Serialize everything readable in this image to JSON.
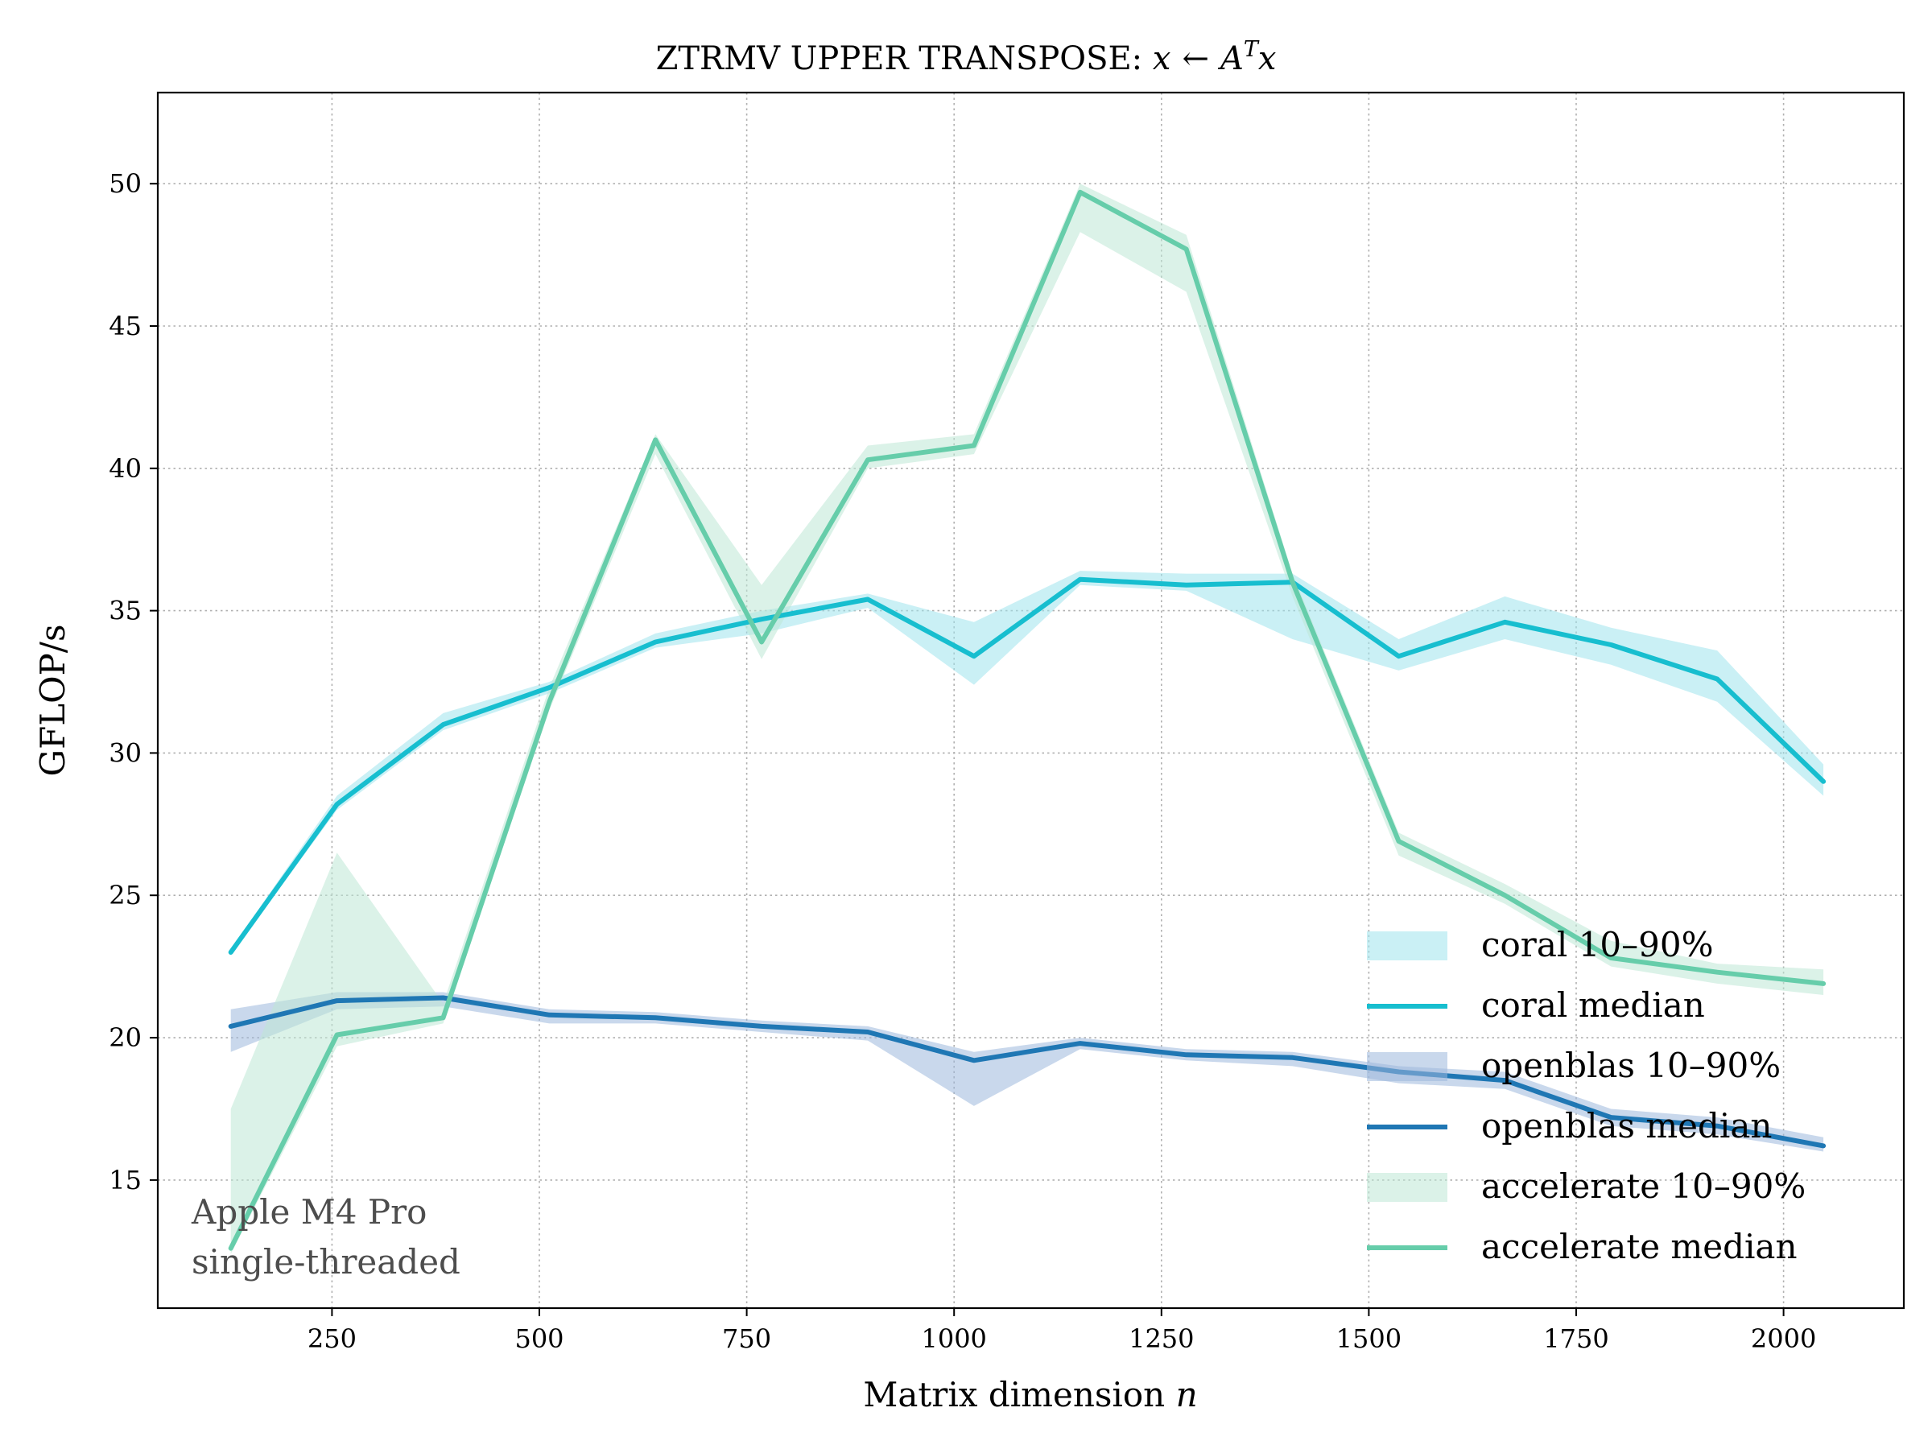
{
  "chart_data": {
    "type": "line",
    "title": "ZTRMV UPPER TRANSPOSE: ",
    "title_math": {
      "x": "x",
      "arrow": "←",
      "A": "A",
      "T": "T",
      "x2": "x"
    },
    "xlabel": "Matrix dimension ",
    "xlabel_var": "n",
    "ylabel": "GFLOP/s",
    "xlim": [
      40,
      2145
    ],
    "ylim": [
      10.5,
      53.2
    ],
    "xticks": [
      250,
      500,
      750,
      1000,
      1250,
      1500,
      1750,
      2000
    ],
    "yticks": [
      15,
      20,
      25,
      30,
      35,
      40,
      45,
      50
    ],
    "grid": true,
    "legend_position": "lower-right",
    "annotation": [
      "Apple M4 Pro",
      "single-threaded"
    ],
    "x": [
      128,
      256,
      384,
      512,
      640,
      768,
      896,
      1024,
      1152,
      1280,
      1408,
      1536,
      1664,
      1792,
      1920,
      2048
    ],
    "series": [
      {
        "name": "coral",
        "color": "#17becf",
        "band_color": "#9fe3ec",
        "median_label": "coral median",
        "band_label": "coral 10–90%",
        "median": [
          23.0,
          28.2,
          31.0,
          32.3,
          33.9,
          34.7,
          35.4,
          33.4,
          36.1,
          35.9,
          36.0,
          33.4,
          34.6,
          33.8,
          32.6,
          29.0
        ],
        "p10": [
          22.9,
          28.0,
          30.8,
          32.1,
          33.7,
          34.2,
          35.1,
          32.4,
          35.9,
          35.7,
          34.0,
          32.9,
          34.0,
          33.1,
          31.8,
          28.5
        ],
        "p90": [
          23.1,
          28.5,
          31.4,
          32.5,
          34.2,
          35.0,
          35.6,
          34.6,
          36.4,
          36.3,
          36.3,
          34.0,
          35.5,
          34.4,
          33.6,
          29.6
        ]
      },
      {
        "name": "openblas",
        "color": "#1f77b4",
        "band_color": "#9cb8dc",
        "median_label": "openblas median",
        "band_label": "openblas 10–90%",
        "median": [
          20.4,
          21.3,
          21.4,
          20.8,
          20.7,
          20.4,
          20.2,
          19.2,
          19.8,
          19.4,
          19.3,
          18.8,
          18.5,
          17.2,
          16.9,
          16.2
        ],
        "p10": [
          19.5,
          21.0,
          21.1,
          20.5,
          20.5,
          20.2,
          19.9,
          17.6,
          19.6,
          19.2,
          19.0,
          18.4,
          18.2,
          16.9,
          16.6,
          16.0
        ],
        "p90": [
          21.0,
          21.6,
          21.6,
          21.0,
          20.9,
          20.6,
          20.4,
          19.5,
          20.0,
          19.6,
          19.5,
          19.0,
          18.8,
          17.5,
          17.2,
          16.5
        ]
      },
      {
        "name": "accelerate",
        "color": "#66cdaa",
        "band_color": "#bde8d6",
        "median_label": "accelerate median",
        "band_label": "accelerate 10–90%",
        "median": [
          12.6,
          20.1,
          20.7,
          31.8,
          41.0,
          33.9,
          40.3,
          40.8,
          49.7,
          47.7,
          36.0,
          26.9,
          25.0,
          22.8,
          22.3,
          21.9
        ],
        "p10": [
          12.4,
          19.7,
          20.5,
          31.5,
          40.5,
          33.3,
          40.0,
          40.5,
          48.3,
          46.2,
          35.5,
          26.4,
          24.7,
          22.5,
          21.9,
          21.5
        ],
        "p90": [
          17.5,
          26.5,
          21.2,
          32.3,
          41.2,
          35.9,
          40.8,
          41.2,
          50.0,
          48.2,
          36.3,
          27.2,
          25.4,
          23.4,
          22.6,
          22.4
        ]
      }
    ]
  }
}
